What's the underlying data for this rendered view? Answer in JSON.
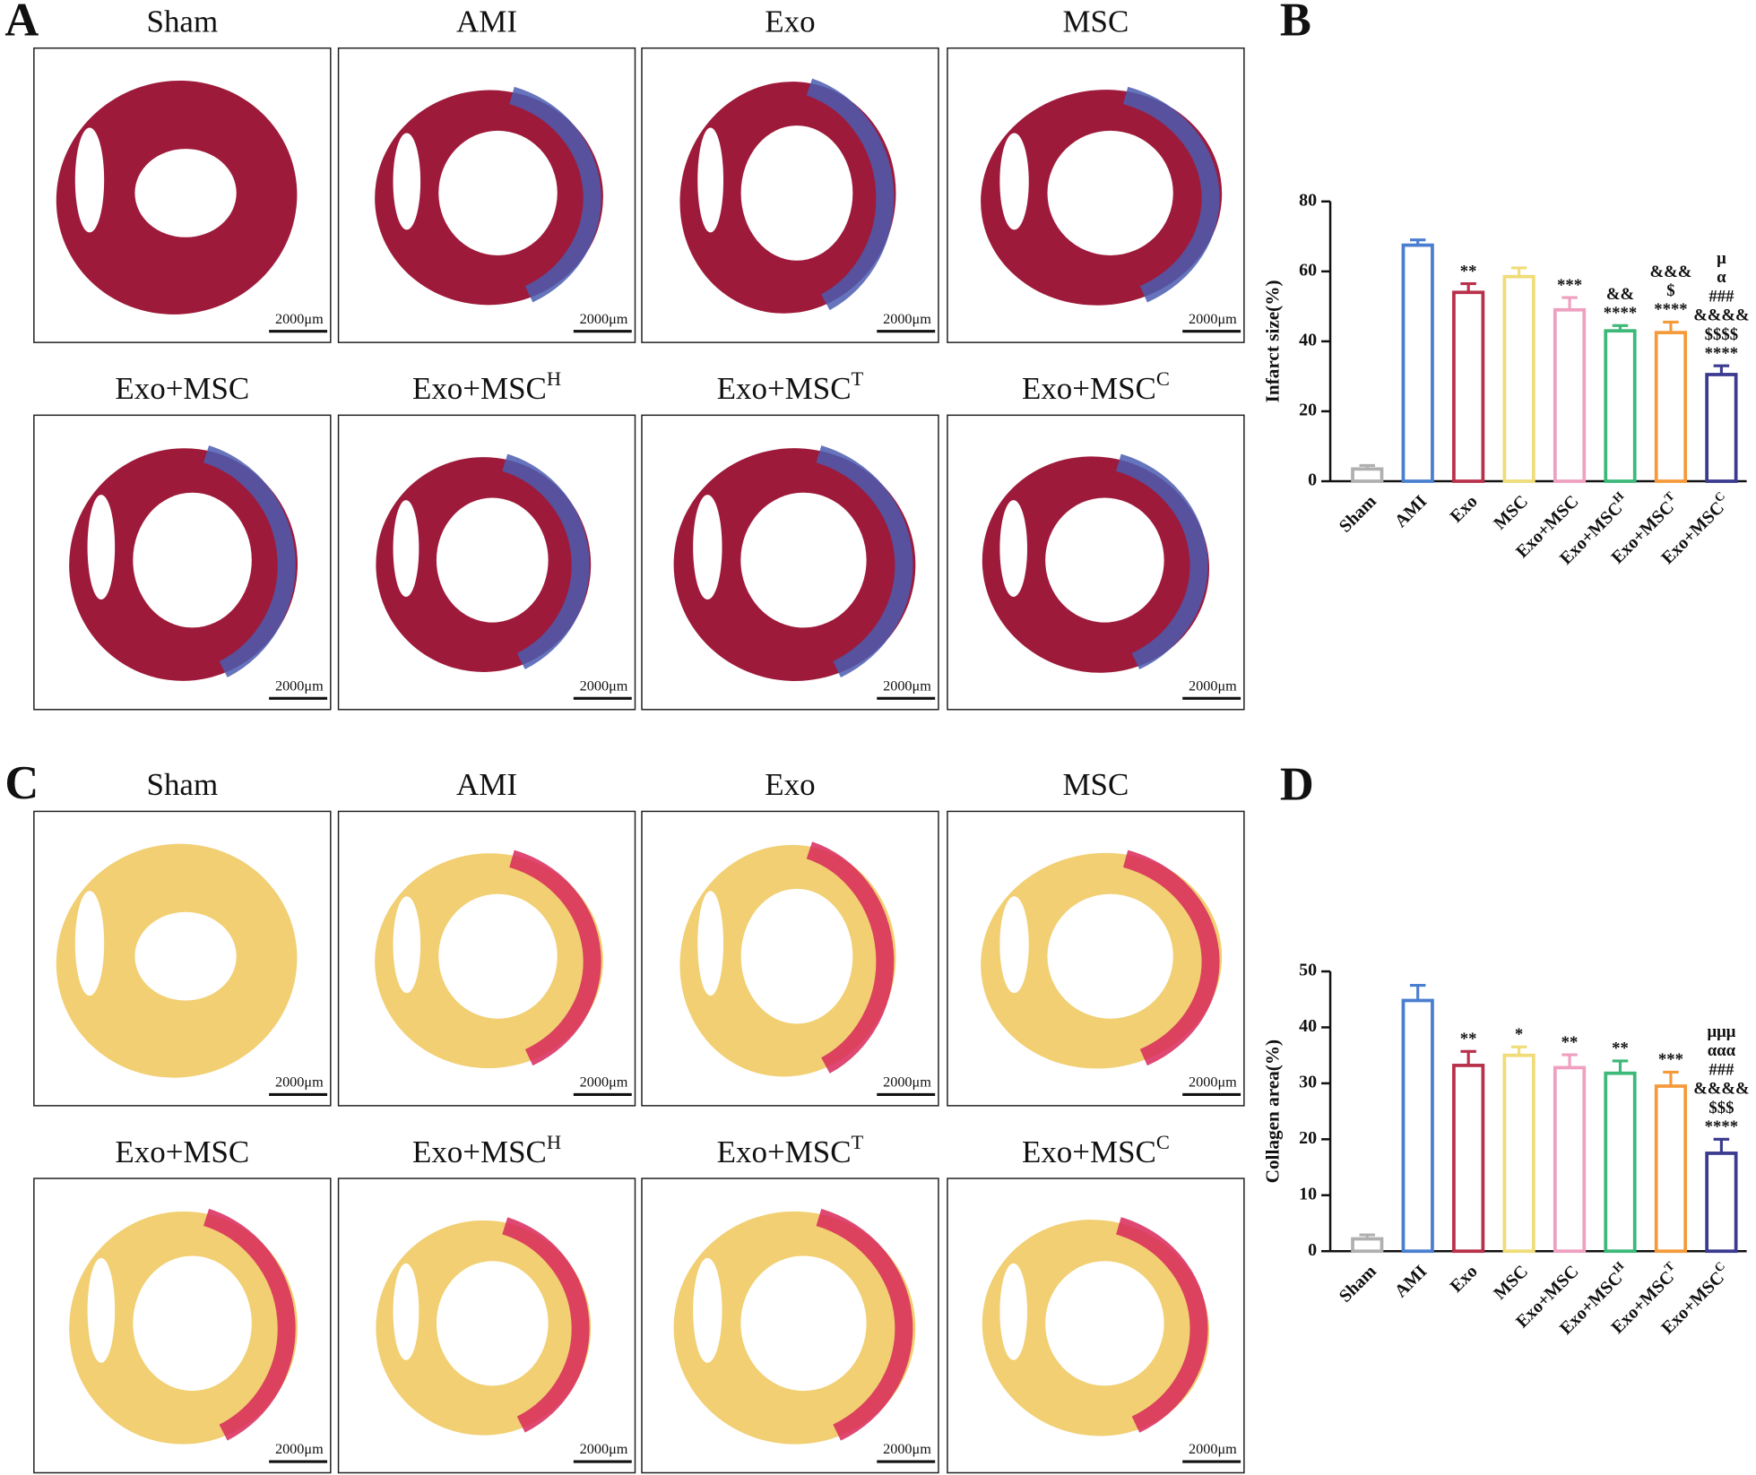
{
  "panels": [
    {
      "label": "A",
      "images": [
        {
          "title": "Sham",
          "scale_bar": "2000μm"
        },
        {
          "title": "AMI",
          "scale_bar": "2000μm"
        },
        {
          "title": "Exo",
          "scale_bar": "2000μm"
        },
        {
          "title": "MSC",
          "scale_bar": "2000μm"
        },
        {
          "title": "Exo+MSC",
          "scale_bar": "2000μm"
        },
        {
          "title": "Exo+MSC",
          "superscript": "H",
          "scale_bar": "2000μm"
        },
        {
          "title": "Exo+MSC",
          "superscript": "T",
          "scale_bar": "2000μm"
        },
        {
          "title": "Exo+MSC",
          "superscript": "C",
          "scale_bar": "2000μm"
        }
      ]
    },
    {
      "label": "C",
      "images": [
        {
          "title": "Sham",
          "scale_bar": "2000μm"
        },
        {
          "title": "AMI",
          "scale_bar": "2000μm"
        },
        {
          "title": "Exo",
          "scale_bar": "2000μm"
        },
        {
          "title": "MSC",
          "scale_bar": "2000μm"
        },
        {
          "title": "Exo+MSC",
          "scale_bar": "2000μm"
        },
        {
          "title": "Exo+MSC",
          "superscript": "H",
          "scale_bar": "2000μm"
        },
        {
          "title": "Exo+MSC",
          "superscript": "T",
          "scale_bar": "2000μm"
        },
        {
          "title": "Exo+MSC",
          "superscript": "C",
          "scale_bar": "2000μm"
        }
      ]
    }
  ],
  "chart_data": [
    {
      "type": "bar",
      "label": "B",
      "ylabel": "Infarct size(%)",
      "categories": [
        "Sham",
        "AMI",
        "Exo",
        "MSC",
        "Exo+MSC",
        "Exo+MSC",
        "Exo+MSC",
        "Exo+MSC"
      ],
      "category_superscripts": [
        null,
        null,
        null,
        null,
        null,
        "H",
        "T",
        "C"
      ],
      "values": [
        3.5,
        67.5,
        54,
        58.5,
        49,
        43,
        42.5,
        30.5
      ],
      "errors": [
        1,
        1.5,
        2.5,
        2.5,
        3.5,
        1.5,
        3,
        2.5
      ],
      "colors": [
        "#b0b0b0",
        "#4a7fcf",
        "#b8304a",
        "#f0dc78",
        "#ef9fc0",
        "#3cb878",
        "#f59a3a",
        "#3a3a90"
      ],
      "annotations": [
        null,
        null,
        [
          "**"
        ],
        null,
        [
          "***"
        ],
        [
          "&&",
          "****"
        ],
        [
          "&&&",
          "$",
          "****"
        ],
        [
          "μ",
          "α",
          "###",
          "&&&&",
          "$$$$",
          "****"
        ]
      ],
      "ylim": [
        0,
        80
      ],
      "yticks": [
        0,
        20,
        40,
        60,
        80
      ]
    },
    {
      "type": "bar",
      "label": "D",
      "ylabel": "Collagen area(%)",
      "categories": [
        "Sham",
        "AMI",
        "Exo",
        "MSC",
        "Exo+MSC",
        "Exo+MSC",
        "Exo+MSC",
        "Exo+MSC"
      ],
      "category_superscripts": [
        null,
        null,
        null,
        null,
        null,
        "H",
        "T",
        "C"
      ],
      "values": [
        2.2,
        44.8,
        33.2,
        35,
        32.8,
        31.8,
        29.5,
        17.5
      ],
      "errors": [
        0.7,
        2.7,
        2.5,
        1.5,
        2.3,
        2.2,
        2.5,
        2.5
      ],
      "colors": [
        "#b0b0b0",
        "#4a7fcf",
        "#b8304a",
        "#f0dc78",
        "#ef9fc0",
        "#3cb878",
        "#f59a3a",
        "#3a3a90"
      ],
      "annotations": [
        null,
        null,
        [
          "**"
        ],
        [
          "*"
        ],
        [
          "**"
        ],
        [
          "**"
        ],
        [
          "***"
        ],
        [
          "μμμ",
          "ααα",
          "###",
          "&&&&",
          "$$$",
          "****"
        ]
      ],
      "ylim": [
        0,
        50
      ],
      "yticks": [
        0,
        10,
        20,
        30,
        40,
        50
      ]
    }
  ]
}
